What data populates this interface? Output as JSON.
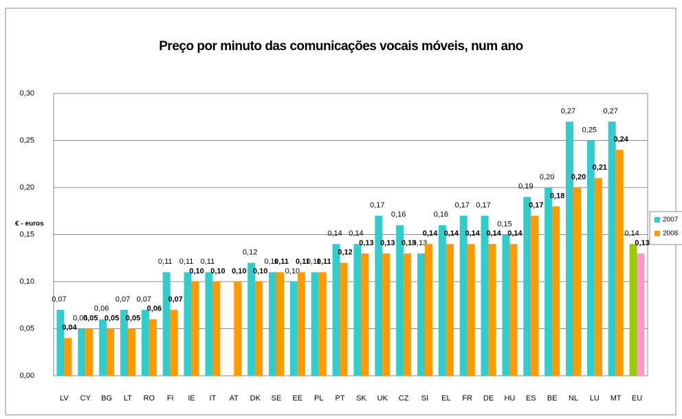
{
  "chart_data": {
    "type": "bar",
    "title": "Preço por minuto das comunicações vocais móveis, num ano",
    "ylabel": "€ - euros",
    "categories": [
      "LV",
      "CY",
      "BG",
      "LT",
      "RO",
      "FI",
      "IE",
      "IT",
      "AT",
      "DK",
      "SE",
      "EE",
      "PL",
      "PT",
      "SK",
      "UK",
      "CZ",
      "SI",
      "EL",
      "FR",
      "DE",
      "HU",
      "ES",
      "BE",
      "NL",
      "LU",
      "MT",
      "EU"
    ],
    "series": [
      {
        "name": "2007",
        "color": "#33CCCC",
        "point_colors": {
          "27": "#99CC00"
        },
        "values": [
          0.07,
          0.05,
          0.06,
          0.07,
          0.07,
          0.11,
          0.11,
          0.11,
          null,
          0.12,
          0.11,
          0.1,
          0.11,
          0.14,
          0.14,
          0.17,
          0.16,
          0.13,
          0.16,
          0.17,
          0.17,
          0.15,
          0.19,
          0.2,
          0.27,
          0.25,
          0.27,
          0.14
        ],
        "value_labels": [
          "0,07",
          "0,05",
          "0,06",
          "0,07",
          "0,07",
          "0,11",
          "0,11",
          "0,11",
          null,
          "0,12",
          "0,11",
          "0,10",
          "0,11",
          "0,14",
          "0,14",
          "0,17",
          "0,16",
          "0,13",
          "0,16",
          "0,17",
          "0,17",
          "0,15",
          "0,19",
          "0,20",
          "0,27",
          "0,25",
          "0,27",
          "0,14"
        ]
      },
      {
        "name": "2008",
        "color": "#FF9900",
        "point_colors": {
          "27": "#FF99CC"
        },
        "values": [
          0.04,
          0.05,
          0.05,
          0.05,
          0.06,
          0.07,
          0.1,
          0.1,
          0.1,
          0.1,
          0.11,
          0.11,
          0.11,
          0.12,
          0.13,
          0.13,
          0.13,
          0.14,
          0.14,
          0.14,
          0.14,
          0.14,
          0.17,
          0.18,
          0.2,
          0.21,
          0.24,
          0.13
        ],
        "value_labels": [
          "0,04",
          "0,05",
          "0,05",
          "0,05",
          "0,06",
          "0,07",
          "0,10",
          "0,10",
          "0,10",
          "0,10",
          "0,11",
          "0,11",
          "0,11",
          "0,12",
          "0,13",
          "0,13",
          "0,13",
          "0,14",
          "0,14",
          "0,14",
          "0,14",
          "0,14",
          "0,17",
          "0,18",
          "0,20",
          "0,21",
          "0,24",
          "0,13"
        ]
      }
    ],
    "ylim": [
      0,
      0.3
    ],
    "yticks": [
      {
        "value": 0,
        "label": "0,00"
      },
      {
        "value": 0.05,
        "label": "0,05"
      },
      {
        "value": 0.1,
        "label": "0,10"
      },
      {
        "value": 0.15,
        "label": "0,15"
      },
      {
        "value": 0.2,
        "label": "0,20"
      },
      {
        "value": 0.25,
        "label": "0,25"
      },
      {
        "value": 0.3,
        "label": "0,30"
      }
    ],
    "grid": true,
    "legend": "right"
  }
}
